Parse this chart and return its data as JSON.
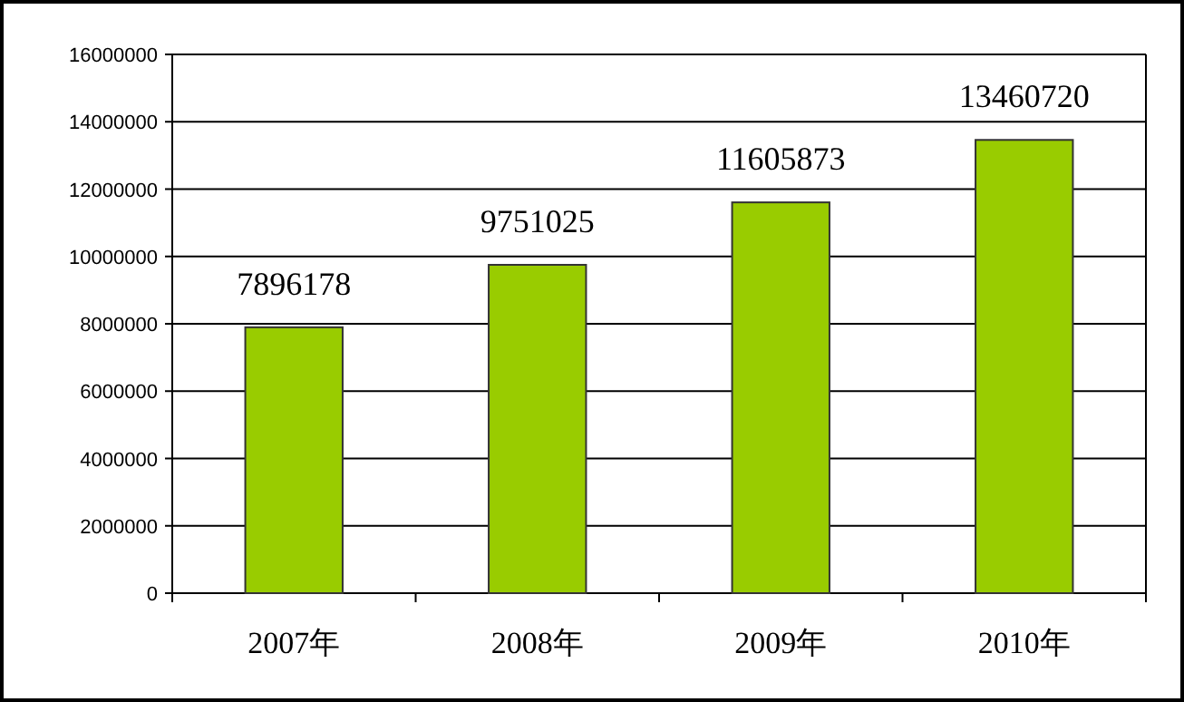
{
  "chart_data": {
    "type": "bar",
    "categories": [
      "2007年",
      "2008年",
      "2009年",
      "2010年"
    ],
    "values": [
      7896178,
      9751025,
      11605873,
      13460720
    ],
    "color": "#99cc00",
    "ylim": [
      0,
      16000000
    ],
    "yticks": [
      0,
      2000000,
      4000000,
      6000000,
      8000000,
      10000000,
      12000000,
      14000000,
      16000000
    ],
    "grid": "y",
    "data_labels": true
  }
}
